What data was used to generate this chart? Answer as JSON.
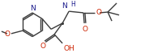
{
  "bg_color": "#ffffff",
  "bond_color": "#3a3a3a",
  "bond_width": 1.0,
  "figsize": [
    1.89,
    0.66
  ],
  "dpi": 100,
  "xlim": [
    0,
    189
  ],
  "ylim": [
    0,
    66
  ]
}
